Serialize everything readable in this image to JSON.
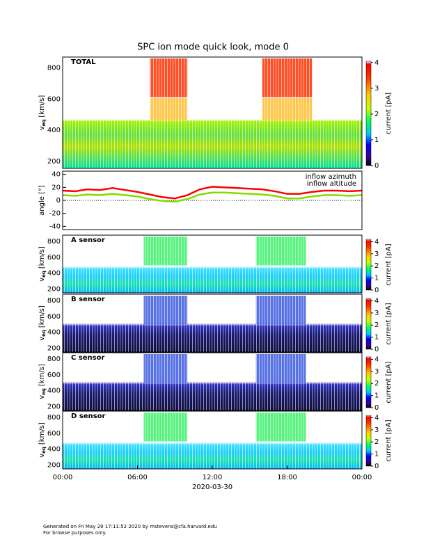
{
  "title": "SPC ion mode quick look, mode 0",
  "footer": [
    "Generated on Fri May 29 17:11:52 2020 by mstevens@cfa.harvard.edu",
    "For browse purposes only."
  ],
  "chart_data": [
    {
      "type": "spectrogram",
      "label": "TOTAL",
      "ylabel": "v",
      "ylabel_sub": "eq",
      "ylabel_unit": "[km/s]",
      "ylim": [
        155,
        870
      ],
      "yticks": [
        200,
        400,
        600,
        800
      ],
      "colorbar": {
        "label": "current [pA]",
        "lim": [
          0,
          4.05
        ],
        "ticks": [
          0,
          1,
          2,
          3,
          4
        ]
      }
    },
    {
      "type": "line",
      "ylabel": "angle [°]",
      "ylim": [
        -45,
        45
      ],
      "yticks": [
        -40,
        -20,
        0,
        20,
        40
      ],
      "x": [
        0,
        1,
        2,
        3,
        4,
        5,
        6,
        7,
        8,
        9,
        10,
        11,
        12,
        13,
        14,
        15,
        16,
        17,
        18,
        19,
        20,
        21,
        22,
        23,
        24
      ],
      "series": [
        {
          "name": "inflow azimuth",
          "color": "#ff0000",
          "values": [
            15,
            14,
            17,
            16,
            19,
            16,
            13,
            9,
            5,
            3,
            8,
            17,
            21,
            20,
            19,
            18,
            17,
            14,
            10,
            10,
            13,
            15,
            15,
            14,
            15
          ]
        },
        {
          "name": "inflow altitude",
          "color": "#7fdc00",
          "values": [
            8,
            7,
            9,
            8,
            10,
            8,
            6,
            2,
            -1,
            -2,
            2,
            9,
            12,
            12,
            11,
            10,
            9,
            7,
            3,
            3,
            6,
            8,
            8,
            7,
            8
          ]
        }
      ]
    },
    {
      "type": "spectrogram",
      "label": "A sensor",
      "ylabel": "v",
      "ylabel_sub": "eq",
      "ylabel_unit": "[km/s]",
      "ylim": [
        150,
        880
      ],
      "yticks": [
        200,
        400,
        600,
        800
      ],
      "colorbar": {
        "label": "current [pA]",
        "lim": [
          0,
          4.2
        ],
        "ticks": [
          0,
          1,
          2,
          3,
          4
        ]
      }
    },
    {
      "type": "spectrogram",
      "label": "B sensor",
      "ylabel": "v",
      "ylabel_sub": "eq",
      "ylabel_unit": "[km/s]",
      "ylim": [
        150,
        880
      ],
      "yticks": [
        200,
        400,
        600,
        800
      ],
      "colorbar": {
        "label": "current [pA]",
        "lim": [
          0,
          4.2
        ],
        "ticks": [
          0,
          1,
          2,
          3,
          4
        ]
      }
    },
    {
      "type": "spectrogram",
      "label": "C sensor",
      "ylabel": "v",
      "ylabel_sub": "eq",
      "ylabel_unit": "[km/s]",
      "ylim": [
        150,
        880
      ],
      "yticks": [
        200,
        400,
        600,
        800
      ],
      "colorbar": {
        "label": "current [pA]",
        "lim": [
          0,
          4.2
        ],
        "ticks": [
          0,
          1,
          2,
          3,
          4
        ]
      }
    },
    {
      "type": "spectrogram",
      "label": "D sensor",
      "ylabel": "v",
      "ylabel_sub": "eq",
      "ylabel_unit": "[km/s]",
      "ylim": [
        150,
        880
      ],
      "yticks": [
        200,
        400,
        600,
        800
      ],
      "colorbar": {
        "label": "current [pA]",
        "lim": [
          0,
          4.2
        ],
        "ticks": [
          0,
          1,
          2,
          3,
          4
        ]
      },
      "xlim": [
        0,
        24
      ],
      "xlabel": "2020-03-30",
      "xticks": [
        {
          "value": 0,
          "label": "00:00"
        },
        {
          "value": 6,
          "label": "06:00"
        },
        {
          "value": 12,
          "label": "12:00"
        },
        {
          "value": 18,
          "label": "18:00"
        },
        {
          "value": 24,
          "label": "00:00"
        }
      ]
    }
  ]
}
